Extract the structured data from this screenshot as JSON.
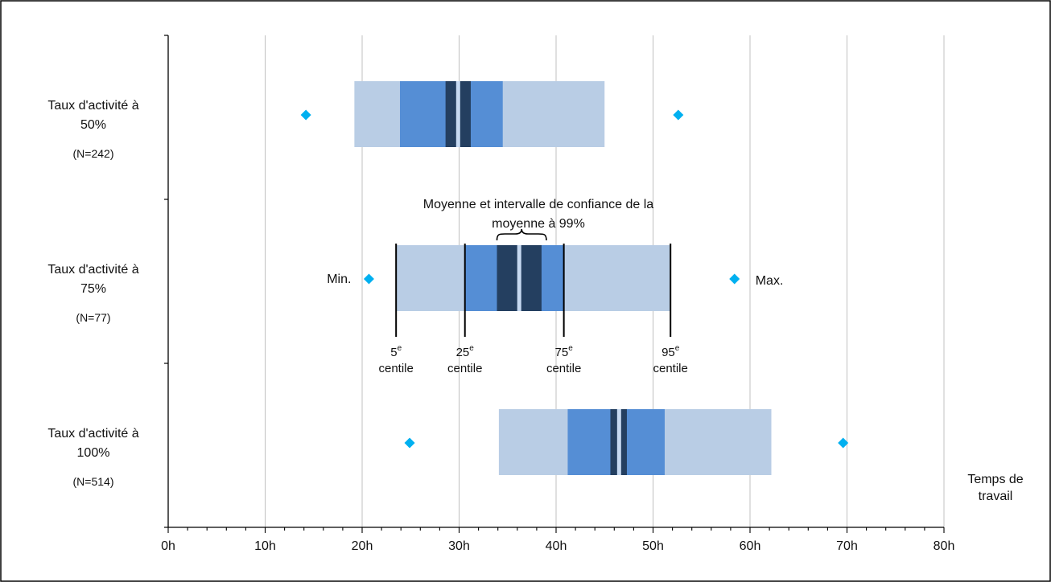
{
  "chart_data": {
    "type": "box",
    "xlabel": "Temps de\ntravail",
    "xlim": [
      0,
      80
    ],
    "xticks": [
      "0h",
      "10h",
      "20h",
      "30h",
      "40h",
      "50h",
      "60h",
      "70h",
      "80h"
    ],
    "grid": true,
    "categories": [
      {
        "label": "Taux d'activité à\n50%",
        "n": "(N=242)"
      },
      {
        "label": "Taux d'activité à\n75%",
        "n": "(N=77)"
      },
      {
        "label": "Taux d'activité à\n100%",
        "n": "(N=514)"
      }
    ],
    "series": [
      {
        "min": 14.2,
        "p5": 19.2,
        "p25": 23.9,
        "ci_low": 28.6,
        "mean": 29.9,
        "ci_high": 31.2,
        "p75": 34.5,
        "p95": 45.0,
        "max": 52.6
      },
      {
        "min": 20.7,
        "p5": 23.5,
        "p25": 30.6,
        "ci_low": 33.9,
        "mean": 36.2,
        "ci_high": 38.5,
        "p75": 40.8,
        "p95": 51.8,
        "max": 58.4
      },
      {
        "min": 24.9,
        "p5": 34.1,
        "p25": 41.2,
        "ci_low": 45.6,
        "mean": 46.5,
        "ci_high": 47.3,
        "p75": 51.2,
        "p95": 62.2,
        "max": 69.6
      }
    ],
    "colors": {
      "outer": "#b9cde5",
      "inner": "#558ed5",
      "ci": "#243f60",
      "mean": "#c6d9f1",
      "marker": "#00b0f0",
      "grid": "#c0c0c0"
    },
    "annotations": {
      "ci_label": "Moyenne et intervalle de confiance de la\nmoyenne à 99%",
      "min_label": "Min.",
      "max_label": "Max.",
      "percentiles": [
        {
          "key": "p5",
          "num": "5",
          "sup": "e",
          "word": "centile"
        },
        {
          "key": "p25",
          "num": "25",
          "sup": "e",
          "word": "centile"
        },
        {
          "key": "p75",
          "num": "75",
          "sup": "e",
          "word": "centile"
        },
        {
          "key": "p95",
          "num": "95",
          "sup": "e",
          "word": "centile"
        }
      ]
    }
  }
}
